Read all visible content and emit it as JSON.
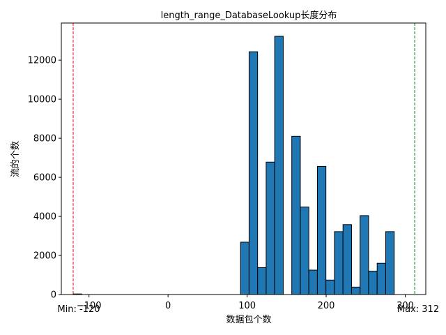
{
  "chart_data": {
    "type": "bar",
    "title": "length_range_DatabaseLookup长度分布",
    "xlabel": "数据包个数",
    "ylabel": "流的个数",
    "xlim": [
      -135,
      326
    ],
    "ylim": [
      0,
      13900
    ],
    "xticks": [
      -100,
      0,
      100,
      200,
      300
    ],
    "xtick_labels": [
      "−100",
      "0",
      "100",
      "200",
      "300"
    ],
    "yticks": [
      0,
      2000,
      4000,
      6000,
      8000,
      10000,
      12000
    ],
    "ytick_labels": [
      "0",
      "2000",
      "4000",
      "6000",
      "8000",
      "10000",
      "12000"
    ],
    "bar_color": "#1f77b4",
    "bar_edge_color": "#000000",
    "bins": [
      {
        "x0": -120.0,
        "x1": -109.2,
        "count": 30
      },
      {
        "x0": 91.68,
        "x1": 102.48,
        "count": 2680
      },
      {
        "x0": 102.48,
        "x1": 113.28,
        "count": 12430
      },
      {
        "x0": 113.28,
        "x1": 124.08,
        "count": 1380
      },
      {
        "x0": 124.08,
        "x1": 134.88,
        "count": 6780
      },
      {
        "x0": 134.88,
        "x1": 145.68,
        "count": 13220
      },
      {
        "x0": 156.48,
        "x1": 167.28,
        "count": 8100
      },
      {
        "x0": 167.28,
        "x1": 178.08,
        "count": 4480
      },
      {
        "x0": 178.08,
        "x1": 188.88,
        "count": 1250
      },
      {
        "x0": 188.88,
        "x1": 199.68,
        "count": 6560
      },
      {
        "x0": 199.68,
        "x1": 210.48,
        "count": 740
      },
      {
        "x0": 210.48,
        "x1": 221.28,
        "count": 3220
      },
      {
        "x0": 221.28,
        "x1": 232.08,
        "count": 3580
      },
      {
        "x0": 232.08,
        "x1": 242.88,
        "count": 380
      },
      {
        "x0": 242.88,
        "x1": 253.68,
        "count": 4040
      },
      {
        "x0": 253.68,
        "x1": 264.48,
        "count": 1200
      },
      {
        "x0": 264.48,
        "x1": 275.28,
        "count": 1600
      },
      {
        "x0": 275.28,
        "x1": 286.08,
        "count": 3220
      }
    ],
    "min_line": {
      "value": -120,
      "label": "Min: -120",
      "color": "#ff0000"
    },
    "max_line": {
      "value": 312,
      "label": "Max: 312",
      "color": "#008000"
    }
  }
}
